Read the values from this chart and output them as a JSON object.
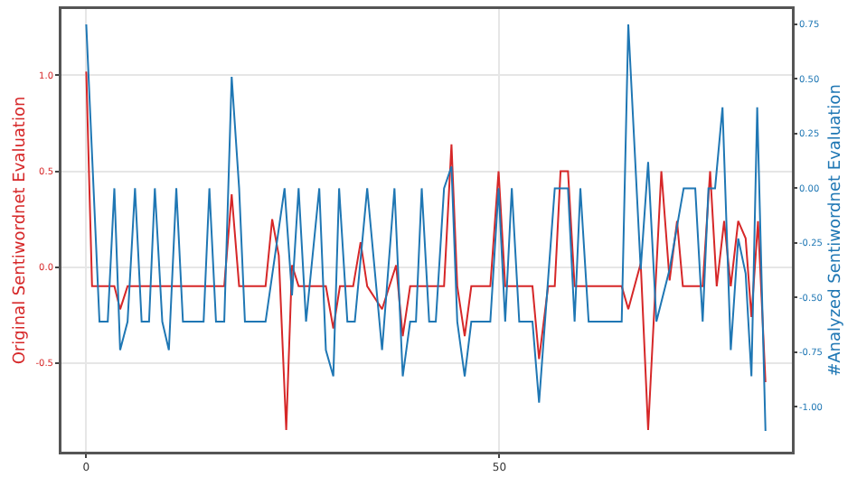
{
  "chart_data": {
    "type": "line",
    "ylabel": "Original Sentiwordnet Evaluation",
    "y2label": "#Analyzed Sentiwordnet Evaluation",
    "xlim": [
      -3,
      85.4
    ],
    "xticks": [
      0,
      50
    ],
    "ylim": [
      -0.963,
      1.346
    ],
    "yticks": [
      {
        "value": 1.0,
        "label": "1.0"
      },
      {
        "value": 0.5,
        "label": "0.5"
      },
      {
        "value": 0.0,
        "label": "0.0"
      },
      {
        "value": -0.5,
        "label": "-0.5"
      }
    ],
    "y2lim": [
      -1.205,
      0.82
    ],
    "y2ticks": [
      {
        "value": 0.75,
        "label": "0.75"
      },
      {
        "value": 0.5,
        "label": "0.50"
      },
      {
        "value": 0.25,
        "label": "0.25"
      },
      {
        "value": 0.0,
        "label": "0.00"
      },
      {
        "value": -0.25,
        "label": "-0.25"
      },
      {
        "value": -0.5,
        "label": "-0.50"
      },
      {
        "value": -0.75,
        "label": "-0.75"
      },
      {
        "value": -1.0,
        "label": "-1.00"
      }
    ],
    "grid": true,
    "marker": "none",
    "line_style": "solid",
    "series": [
      {
        "color": "#d62728",
        "x": [
          0,
          0.7,
          3.4,
          4.1,
          5,
          16.7,
          17.6,
          18.5,
          21.7,
          22.5,
          23.3,
          24.2,
          24.9,
          25.7,
          29,
          29.9,
          30.7,
          32.3,
          33.2,
          34,
          35.8,
          37.5,
          38.3,
          39.2,
          43.3,
          44.2,
          44.9,
          45.8,
          46.6,
          48.9,
          49.9,
          50.7,
          54,
          54.8,
          55.9,
          56.7,
          57.4,
          58.3,
          59.1,
          64.8,
          65.6,
          67.1,
          68,
          69.6,
          70.6,
          71.5,
          72.2,
          74.6,
          75.5,
          76.3,
          77.2,
          78,
          78.9,
          79.8,
          80.5,
          81.3,
          82.2
        ],
        "values": [
          1.02,
          -0.1,
          -0.1,
          -0.22,
          -0.1,
          -0.1,
          0.38,
          -0.1,
          -0.1,
          0.25,
          0.06,
          -0.85,
          0.01,
          -0.1,
          -0.1,
          -0.32,
          -0.1,
          -0.1,
          0.13,
          -0.1,
          -0.22,
          0.01,
          -0.36,
          -0.1,
          -0.1,
          0.64,
          -0.1,
          -0.36,
          -0.1,
          -0.1,
          0.5,
          -0.1,
          -0.1,
          -0.48,
          -0.1,
          -0.1,
          0.5,
          0.5,
          -0.1,
          -0.1,
          -0.22,
          0.02,
          -0.85,
          0.5,
          -0.07,
          0.24,
          -0.1,
          -0.1,
          0.5,
          -0.1,
          0.24,
          -0.1,
          0.24,
          0.15,
          -0.26,
          0.24,
          -0.6
        ]
      },
      {
        "color": "#1f77b4",
        "axis": "y2",
        "x": [
          0,
          1.6,
          2.6,
          3.4,
          4.1,
          5,
          5.9,
          6.7,
          7.6,
          8.3,
          9.2,
          10,
          10.9,
          11.7,
          14.2,
          14.9,
          15.7,
          16.7,
          17.6,
          18.5,
          19.2,
          21.7,
          24,
          24.9,
          25.7,
          26.6,
          28.2,
          29,
          29.9,
          30.6,
          31.6,
          32.5,
          34,
          35.8,
          37.3,
          38.3,
          39.2,
          39.9,
          40.6,
          41.5,
          42.3,
          43.3,
          44.2,
          44.9,
          45.8,
          46.6,
          48.9,
          49.9,
          50.7,
          51.5,
          52.4,
          54,
          54.8,
          56.7,
          58.3,
          59.1,
          59.8,
          60.8,
          64.8,
          65.6,
          67.1,
          68,
          69,
          70.6,
          72.3,
          73.7,
          74.6,
          75.3,
          76.1,
          77,
          78,
          78.9,
          79.8,
          80.5,
          81.2,
          82.2
        ],
        "values": [
          0.75,
          -0.61,
          -0.61,
          0.0,
          -0.74,
          -0.61,
          0.0,
          -0.61,
          -0.61,
          0.0,
          -0.61,
          -0.74,
          0.0,
          -0.61,
          -0.61,
          0.0,
          -0.61,
          -0.61,
          0.51,
          0.0,
          -0.61,
          -0.61,
          0.0,
          -0.49,
          0.0,
          -0.61,
          0.0,
          -0.74,
          -0.86,
          0.0,
          -0.61,
          -0.61,
          0.0,
          -0.74,
          0.0,
          -0.86,
          -0.61,
          -0.61,
          0.0,
          -0.61,
          -0.61,
          0.0,
          0.1,
          -0.61,
          -0.86,
          -0.61,
          -0.61,
          0.0,
          -0.61,
          0.0,
          -0.61,
          -0.61,
          -0.98,
          0.0,
          0.0,
          -0.61,
          0.0,
          -0.61,
          -0.61,
          0.75,
          -0.37,
          0.12,
          -0.61,
          -0.37,
          0.0,
          0.0,
          -0.61,
          0.0,
          0.0,
          0.37,
          -0.74,
          -0.23,
          -0.39,
          -0.86,
          0.37,
          -1.11
        ]
      }
    ]
  }
}
